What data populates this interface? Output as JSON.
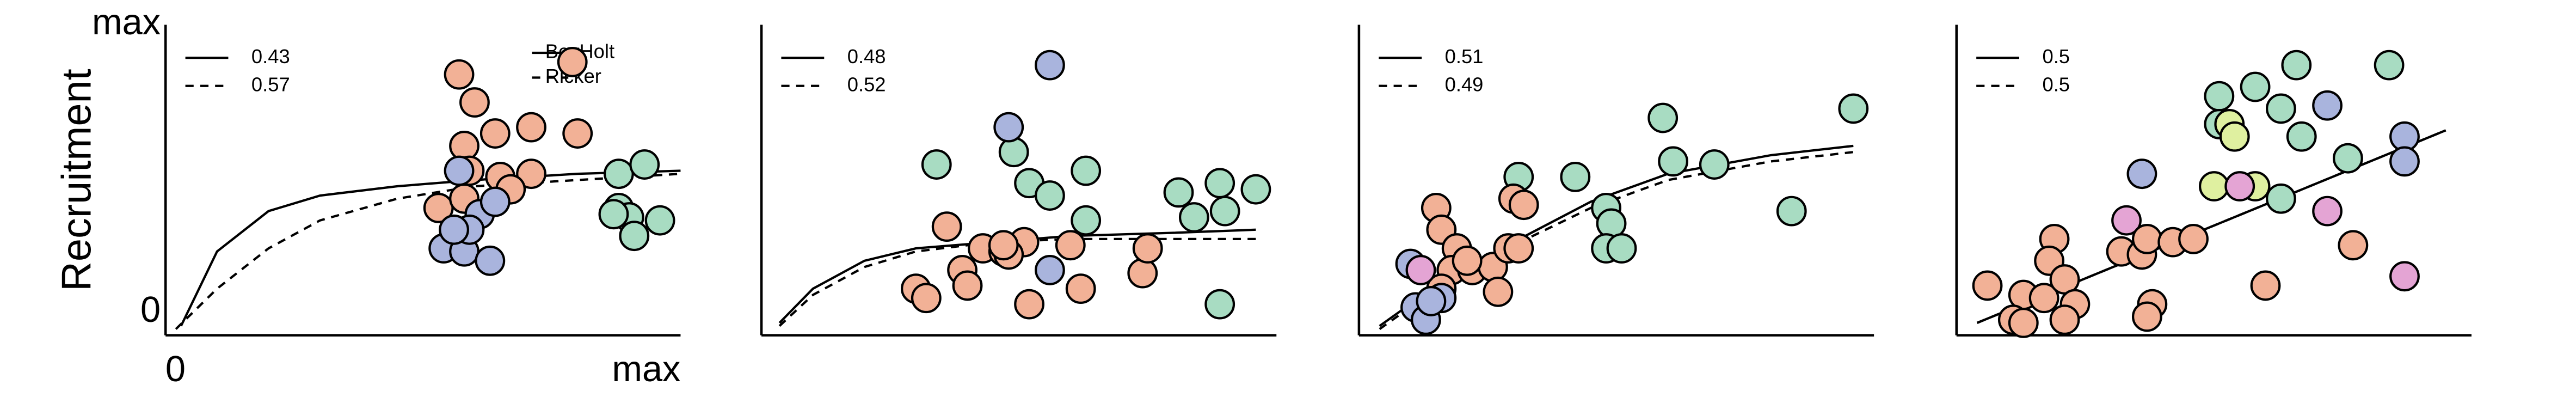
{
  "chart_data": [
    {
      "type": "scatter",
      "ylabel": "Recruitment",
      "xlim": [
        0,
        1
      ],
      "ylim": [
        0,
        1
      ],
      "xticks": [
        0,
        {
          "value": 1,
          "label": "max"
        }
      ],
      "yticks": [
        0,
        {
          "value": 1,
          "label": "max"
        }
      ],
      "curves": [
        {
          "name": "BevHolt",
          "weight": 0.43,
          "style": "solid",
          "x": [
            0.03,
            0.1,
            0.2,
            0.3,
            0.45,
            0.6,
            0.8,
            1.0
          ],
          "y": [
            0.03,
            0.27,
            0.4,
            0.45,
            0.48,
            0.5,
            0.52,
            0.53
          ]
        },
        {
          "name": "Ricker",
          "weight": 0.57,
          "style": "dashed",
          "x": [
            0.02,
            0.1,
            0.2,
            0.3,
            0.45,
            0.6,
            0.8,
            1.0
          ],
          "y": [
            0.02,
            0.15,
            0.28,
            0.37,
            0.44,
            0.48,
            0.5,
            0.52
          ]
        }
      ],
      "point_groups": [
        {
          "color": "#f2b196",
          "x": [
            0.57,
            0.6,
            0.58,
            0.64,
            0.71,
            0.8,
            0.59,
            0.65,
            0.71,
            0.53,
            0.58,
            0.67,
            0.79
          ],
          "y": [
            0.84,
            0.75,
            0.61,
            0.65,
            0.67,
            0.65,
            0.53,
            0.51,
            0.52,
            0.41,
            0.44,
            0.47,
            0.88
          ]
        },
        {
          "color": "#a9b4dd",
          "x": [
            0.57,
            0.61,
            0.64,
            0.54,
            0.58,
            0.63,
            0.59,
            0.56
          ],
          "y": [
            0.53,
            0.39,
            0.43,
            0.28,
            0.27,
            0.24,
            0.34,
            0.34
          ]
        },
        {
          "color": "#a8dcc2",
          "x": [
            0.88,
            0.93,
            0.88,
            0.9,
            0.96,
            0.91,
            0.87
          ],
          "y": [
            0.52,
            0.55,
            0.41,
            0.38,
            0.37,
            0.32,
            0.39
          ]
        }
      ]
    },
    {
      "type": "scatter",
      "xlim": [
        0,
        1
      ],
      "ylim": [
        0,
        1
      ],
      "curves": [
        {
          "weight": 0.48,
          "style": "solid",
          "x": [
            0.035,
            0.1,
            0.2,
            0.3,
            0.45,
            0.6,
            0.8,
            0.96
          ],
          "y": [
            0.04,
            0.15,
            0.24,
            0.28,
            0.3,
            0.32,
            0.33,
            0.34
          ]
        },
        {
          "weight": 0.52,
          "style": "dashed",
          "x": [
            0.035,
            0.1,
            0.2,
            0.3,
            0.45,
            0.6,
            0.8,
            0.96
          ],
          "y": [
            0.03,
            0.13,
            0.22,
            0.27,
            0.3,
            0.31,
            0.31,
            0.31
          ]
        }
      ],
      "point_groups": [
        {
          "color": "#a8dcc2",
          "x": [
            0.34,
            0.49,
            0.52,
            0.56,
            0.63,
            0.63,
            0.81,
            0.89,
            0.96,
            0.84,
            0.9,
            0.89
          ],
          "y": [
            0.55,
            0.59,
            0.49,
            0.45,
            0.53,
            0.37,
            0.46,
            0.49,
            0.47,
            0.38,
            0.4,
            0.1
          ]
        },
        {
          "color": "#a9b4dd",
          "x": [
            0.56,
            0.56,
            0.48
          ],
          "y": [
            0.87,
            0.21,
            0.67
          ]
        },
        {
          "color": "#f2b196",
          "x": [
            0.36,
            0.3,
            0.32,
            0.39,
            0.4,
            0.43,
            0.47,
            0.51,
            0.48,
            0.52,
            0.62,
            0.74,
            0.75,
            0.6,
            0.47
          ],
          "y": [
            0.35,
            0.15,
            0.12,
            0.21,
            0.16,
            0.28,
            0.27,
            0.3,
            0.26,
            0.1,
            0.15,
            0.2,
            0.28,
            0.29,
            0.29
          ]
        }
      ]
    },
    {
      "type": "scatter",
      "xlim": [
        0,
        1
      ],
      "ylim": [
        0,
        1
      ],
      "curves": [
        {
          "weight": 0.51,
          "style": "solid",
          "x": [
            0.04,
            0.15,
            0.3,
            0.45,
            0.6,
            0.8,
            0.96
          ],
          "y": [
            0.03,
            0.16,
            0.3,
            0.43,
            0.52,
            0.58,
            0.61
          ]
        },
        {
          "weight": 0.49,
          "style": "dashed",
          "x": [
            0.04,
            0.15,
            0.3,
            0.45,
            0.6,
            0.8,
            0.96
          ],
          "y": [
            0.02,
            0.15,
            0.29,
            0.41,
            0.5,
            0.56,
            0.59
          ]
        }
      ],
      "point_groups": [
        {
          "color": "#a8dcc2",
          "x": [
            0.59,
            0.61,
            0.69,
            0.31,
            0.42,
            0.48,
            0.49,
            0.48,
            0.51,
            0.84,
            0.96
          ],
          "y": [
            0.7,
            0.56,
            0.55,
            0.51,
            0.51,
            0.41,
            0.36,
            0.28,
            0.28,
            0.4,
            0.73
          ]
        },
        {
          "color": "#f2b196",
          "x": [
            0.3,
            0.32,
            0.15,
            0.16,
            0.19,
            0.18,
            0.22,
            0.26,
            0.29,
            0.31,
            0.27,
            0.16,
            0.21
          ],
          "y": [
            0.44,
            0.42,
            0.41,
            0.34,
            0.28,
            0.21,
            0.21,
            0.22,
            0.28,
            0.28,
            0.14,
            0.15,
            0.24
          ]
        },
        {
          "color": "#a9b4dd",
          "x": [
            0.1,
            0.11,
            0.13,
            0.16,
            0.14
          ],
          "y": [
            0.23,
            0.09,
            0.05,
            0.12,
            0.11
          ]
        },
        {
          "color": "#e4a4d4",
          "x": [
            0.12
          ],
          "y": [
            0.21
          ]
        }
      ]
    },
    {
      "type": "scatter",
      "xlim": [
        0,
        1
      ],
      "ylim": [
        0,
        1
      ],
      "curves": [
        {
          "weight": 0.5,
          "style": "solid",
          "x": [
            0.04,
            0.95
          ],
          "y": [
            0.04,
            0.66
          ]
        },
        {
          "weight": 0.5,
          "style": "dashed",
          "x": [
            0.04,
            0.95
          ],
          "y": [
            0.04,
            0.66
          ]
        }
      ],
      "point_groups": [
        {
          "color": "#a8dcc2",
          "x": [
            0.66,
            0.84,
            0.51,
            0.58,
            0.63,
            0.51,
            0.76,
            0.63,
            0.67
          ],
          "y": [
            0.87,
            0.87,
            0.77,
            0.8,
            0.73,
            0.68,
            0.57,
            0.44,
            0.64
          ]
        },
        {
          "color": "#dff0a0",
          "x": [
            0.53,
            0.54,
            0.5,
            0.58
          ],
          "y": [
            0.68,
            0.64,
            0.48,
            0.48
          ]
        },
        {
          "color": "#a9b4dd",
          "x": [
            0.72,
            0.87,
            0.87,
            0.36
          ],
          "y": [
            0.74,
            0.64,
            0.56,
            0.52
          ]
        },
        {
          "color": "#e4a4d4",
          "x": [
            0.55,
            0.33,
            0.72,
            0.87
          ],
          "y": [
            0.48,
            0.37,
            0.4,
            0.19
          ]
        },
        {
          "color": "#f2b196",
          "x": [
            0.19,
            0.18,
            0.06,
            0.13,
            0.11,
            0.17,
            0.21,
            0.23,
            0.13,
            0.21,
            0.32,
            0.36,
            0.37,
            0.42,
            0.46,
            0.38,
            0.37,
            0.6,
            0.77
          ],
          "y": [
            0.31,
            0.24,
            0.16,
            0.13,
            0.05,
            0.12,
            0.18,
            0.1,
            0.04,
            0.05,
            0.27,
            0.26,
            0.31,
            0.3,
            0.31,
            0.1,
            0.06,
            0.16,
            0.29
          ]
        }
      ]
    }
  ]
}
